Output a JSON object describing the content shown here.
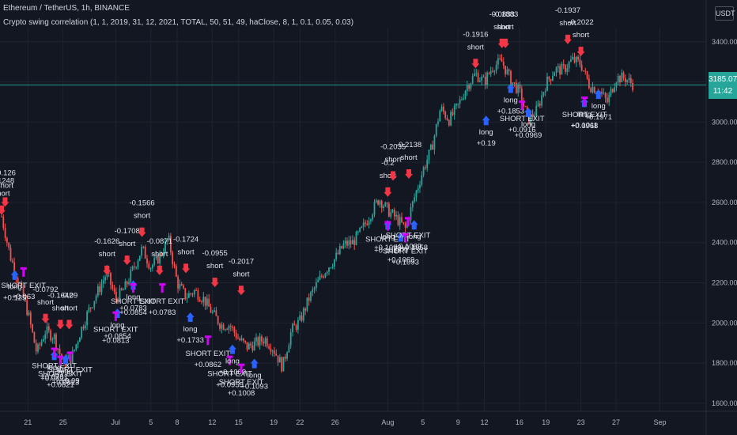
{
  "header": {
    "symbol": "Ethereum / TetherUS, 1h, BINANCE",
    "indicator": "Crypto swing correlation (1, 1, 2019, 31, 12, 2021, TOTAL, 50, 51, 49, haClose, 8, 1, 0.1, 0.05, 0.03)",
    "currency_button": "USDT"
  },
  "last_price": {
    "value": "3185.07",
    "countdown": "11:42"
  },
  "colors": {
    "background": "#131722",
    "grid": "#1f2331",
    "up": "#26a69a",
    "down": "#ef5350",
    "short_arrow": "#f23645",
    "long_arrow": "#2962ff",
    "exit_marker": "#d500f9",
    "price_line": "#26a69a",
    "label": "#e0e3eb"
  },
  "chart_data": {
    "type": "candlestick",
    "y_axis": {
      "ticks": [
        "1600.00",
        "1800.00",
        "2000.00",
        "2200.00",
        "2400.00",
        "2600.00",
        "2800.00",
        "3000.00",
        "3200.00",
        "3400.00"
      ],
      "range": [
        1560,
        3470
      ]
    },
    "x_axis": {
      "ticks": [
        "21",
        "25",
        "Jul",
        "5",
        "8",
        "12",
        "15",
        "19",
        "22",
        "26",
        "Aug",
        "5",
        "9",
        "12",
        "16",
        "19",
        "23",
        "27",
        "Sep"
      ]
    },
    "price_path": [
      [
        "Jun 18",
        2530
      ],
      [
        "Jun 19",
        2330
      ],
      [
        "Jun 20",
        2200
      ],
      [
        "Jun 21",
        2050
      ],
      [
        "Jun 22",
        1850
      ],
      [
        "Jun 23",
        1960
      ],
      [
        "Jun 24",
        1930
      ],
      [
        "Jun 25",
        1800
      ],
      [
        "Jun 26",
        1830
      ],
      [
        "Jun 27",
        1960
      ],
      [
        "Jun 28",
        2070
      ],
      [
        "Jun 29",
        2160
      ],
      [
        "Jun 30",
        2250
      ],
      [
        "Jul 1",
        2120
      ],
      [
        "Jul 2",
        2170
      ],
      [
        "Jul 3",
        2270
      ],
      [
        "Jul 4",
        2370
      ],
      [
        "Jul 5",
        2280
      ],
      [
        "Jul 6",
        2330
      ],
      [
        "Jul 7",
        2420
      ],
      [
        "Jul 8",
        2200
      ],
      [
        "Jul 9",
        2130
      ],
      [
        "Jul 10",
        2160
      ],
      [
        "Jul 11",
        2120
      ],
      [
        "Jul 12",
        2050
      ],
      [
        "Jul 13",
        1990
      ],
      [
        "Jul 14",
        1990
      ],
      [
        "Jul 15",
        1920
      ],
      [
        "Jul 16",
        1880
      ],
      [
        "Jul 17",
        1900
      ],
      [
        "Jul 18",
        1920
      ],
      [
        "Jul 19",
        1870
      ],
      [
        "Jul 20",
        1780
      ],
      [
        "Jul 21",
        1960
      ],
      [
        "Jul 22",
        2010
      ],
      [
        "Jul 23",
        2120
      ],
      [
        "Jul 24",
        2200
      ],
      [
        "Jul 25",
        2270
      ],
      [
        "Jul 26",
        2320
      ],
      [
        "Jul 27",
        2390
      ],
      [
        "Jul 28",
        2400
      ],
      [
        "Jul 29",
        2460
      ],
      [
        "Jul 30",
        2540
      ],
      [
        "Jul 31",
        2620
      ],
      [
        "Aug 1",
        2560
      ],
      [
        "Aug 2",
        2520
      ],
      [
        "Aug 3",
        2470
      ],
      [
        "Aug 4",
        2620
      ],
      [
        "Aug 5",
        2760
      ],
      [
        "Aug 6",
        2870
      ],
      [
        "Aug 7",
        3070
      ],
      [
        "Aug 8",
        3010
      ],
      [
        "Aug 9",
        3080
      ],
      [
        "Aug 10",
        3180
      ],
      [
        "Aug 11",
        3240
      ],
      [
        "Aug 12",
        3200
      ],
      [
        "Aug 13",
        3280
      ],
      [
        "Aug 14",
        3300
      ],
      [
        "Aug 15",
        3210
      ],
      [
        "Aug 16",
        3150
      ],
      [
        "Aug 17",
        3010
      ],
      [
        "Aug 18",
        3060
      ],
      [
        "Aug 19",
        3190
      ],
      [
        "Aug 20",
        3260
      ],
      [
        "Aug 21",
        3260
      ],
      [
        "Aug 22",
        3310
      ],
      [
        "Aug 23",
        3290
      ],
      [
        "Aug 24",
        3180
      ],
      [
        "Aug 25",
        3160
      ],
      [
        "Aug 26",
        3100
      ],
      [
        "Aug 27",
        3220
      ],
      [
        "Aug 28",
        3220
      ],
      [
        "Aug 29",
        3185
      ]
    ],
    "signals": [
      {
        "type": "short",
        "date": "Jun 18",
        "price": 2530,
        "value": "-0.1248"
      },
      {
        "type": "short",
        "date": "Jun 18.4",
        "price": 2570,
        "value": "-0.126"
      },
      {
        "type": "long",
        "date": "Jun 19.5",
        "price": 2270,
        "value": "+0.125"
      },
      {
        "type": "exit",
        "date": "Jun 20.5",
        "price": 2230,
        "value": "+0.063"
      },
      {
        "type": "short",
        "date": "Jun 23",
        "price": 1990,
        "value": "-0.0792"
      },
      {
        "type": "short",
        "date": "Jun 24.7",
        "price": 1960,
        "value": "-0.1642"
      },
      {
        "type": "short",
        "date": "Jun 25.7",
        "price": 1960,
        "value": "-0.09"
      },
      {
        "type": "long",
        "date": "Jun 24",
        "price": 1870,
        "value": "+0.0821"
      },
      {
        "type": "exit",
        "date": "Jun 24",
        "price": 1830,
        "value": "+0.0781"
      },
      {
        "type": "exit",
        "date": "Jun 24.7",
        "price": 1790,
        "value": "+0.0821"
      },
      {
        "type": "long",
        "date": "Jun 25.3",
        "price": 1850,
        "value": "+0.0813"
      },
      {
        "type": "exit",
        "date": "Jun 25.8",
        "price": 1810,
        "value": "+0.09"
      },
      {
        "type": "short",
        "date": "Jun 30",
        "price": 2230,
        "value": "-0.1626"
      },
      {
        "type": "short",
        "date": "Jul 2.3",
        "price": 2280,
        "value": "-0.1708"
      },
      {
        "type": "short",
        "date": "Jul 4",
        "price": 2420,
        "value": "-0.1566"
      },
      {
        "type": "long",
        "date": "Jul 1.2",
        "price": 2080,
        "value": "+0.0854"
      },
      {
        "type": "exit",
        "date": "Jul 1",
        "price": 2010,
        "value": "+0.0813"
      },
      {
        "type": "long",
        "date": "Jul 3",
        "price": 2220,
        "value": "+0.0783"
      },
      {
        "type": "exit",
        "date": "Jul 3",
        "price": 2150,
        "value": "+0.0854"
      },
      {
        "type": "short",
        "date": "Jul 6",
        "price": 2230,
        "value": "-0.0871"
      },
      {
        "type": "exit",
        "date": "Jul 6.3",
        "price": 2150,
        "value": "+0.0783"
      },
      {
        "type": "short",
        "date": "Jul 9",
        "price": 2240,
        "value": "-0.1724"
      },
      {
        "type": "long",
        "date": "Jul 9.5",
        "price": 2060,
        "value": "+0.1733"
      },
      {
        "type": "short",
        "date": "Jul 12.3",
        "price": 2170,
        "value": "-0.0955"
      },
      {
        "type": "exit",
        "date": "Jul 11.5",
        "price": 1890,
        "value": "+0.0862"
      },
      {
        "type": "exit",
        "date": "Jul 14",
        "price": 1790,
        "value": "+0.0955"
      },
      {
        "type": "long",
        "date": "Jul 14.3",
        "price": 1900,
        "value": "+0.1009"
      },
      {
        "type": "short",
        "date": "Jul 15.3",
        "price": 2130,
        "value": "-0.2017"
      },
      {
        "type": "exit",
        "date": "Jul 15.3",
        "price": 1750,
        "value": "+0.1008"
      },
      {
        "type": "long",
        "date": "Jul 16.8",
        "price": 1830,
        "value": "+0.1093"
      },
      {
        "type": "short",
        "date": "Aug 1",
        "price": 2620,
        "value": "-0.2"
      },
      {
        "type": "short",
        "date": "Aug 1.6",
        "price": 2700,
        "value": "-0.2035"
      },
      {
        "type": "short",
        "date": "Aug 3.4",
        "price": 2710,
        "value": "-0.2138"
      },
      {
        "type": "long",
        "date": "Aug 1",
        "price": 2520,
        "value": "+0.1093"
      },
      {
        "type": "exit",
        "date": "Aug 1",
        "price": 2460,
        "value": "+0.1017"
      },
      {
        "type": "long",
        "date": "Aug 2.5",
        "price": 2460,
        "value": "+0.1069"
      },
      {
        "type": "exit",
        "date": "Aug 3.3",
        "price": 2480,
        "value": "+0.1069"
      },
      {
        "type": "long",
        "date": "Aug 4",
        "price": 2520,
        "value": "+0.1958"
      },
      {
        "type": "exit",
        "date": "Aug 3",
        "price": 2400,
        "value": "+0.1093"
      },
      {
        "type": "short",
        "date": "Aug 11",
        "price": 3260,
        "value": "-0.1916"
      },
      {
        "type": "long",
        "date": "Aug 12.2",
        "price": 3040,
        "value": "+0.19"
      },
      {
        "type": "short",
        "date": "Aug 14",
        "price": 3360,
        "value": "-0.0833"
      },
      {
        "type": "short",
        "date": "Aug 14.4",
        "price": 3360,
        "value": "-0.1883"
      },
      {
        "type": "long",
        "date": "Aug 15",
        "price": 3200,
        "value": "+0.1853"
      },
      {
        "type": "exit",
        "date": "Aug 16.3",
        "price": 3060,
        "value": "+0.0916"
      },
      {
        "type": "long",
        "date": "Aug 17",
        "price": 3080,
        "value": "+0.0969"
      },
      {
        "type": "short",
        "date": "Aug 21.5",
        "price": 3380,
        "value": "-0.1937"
      },
      {
        "type": "short",
        "date": "Aug 23",
        "price": 3320,
        "value": "-0.2022"
      },
      {
        "type": "long",
        "date": "Aug 23.4",
        "price": 3130,
        "value": "+0.1011"
      },
      {
        "type": "exit",
        "date": "Aug 23.4",
        "price": 3080,
        "value": "+0.0968"
      },
      {
        "type": "long",
        "date": "Aug 25",
        "price": 3170,
        "value": "+0.1971"
      }
    ],
    "last_price": 3185.07
  }
}
